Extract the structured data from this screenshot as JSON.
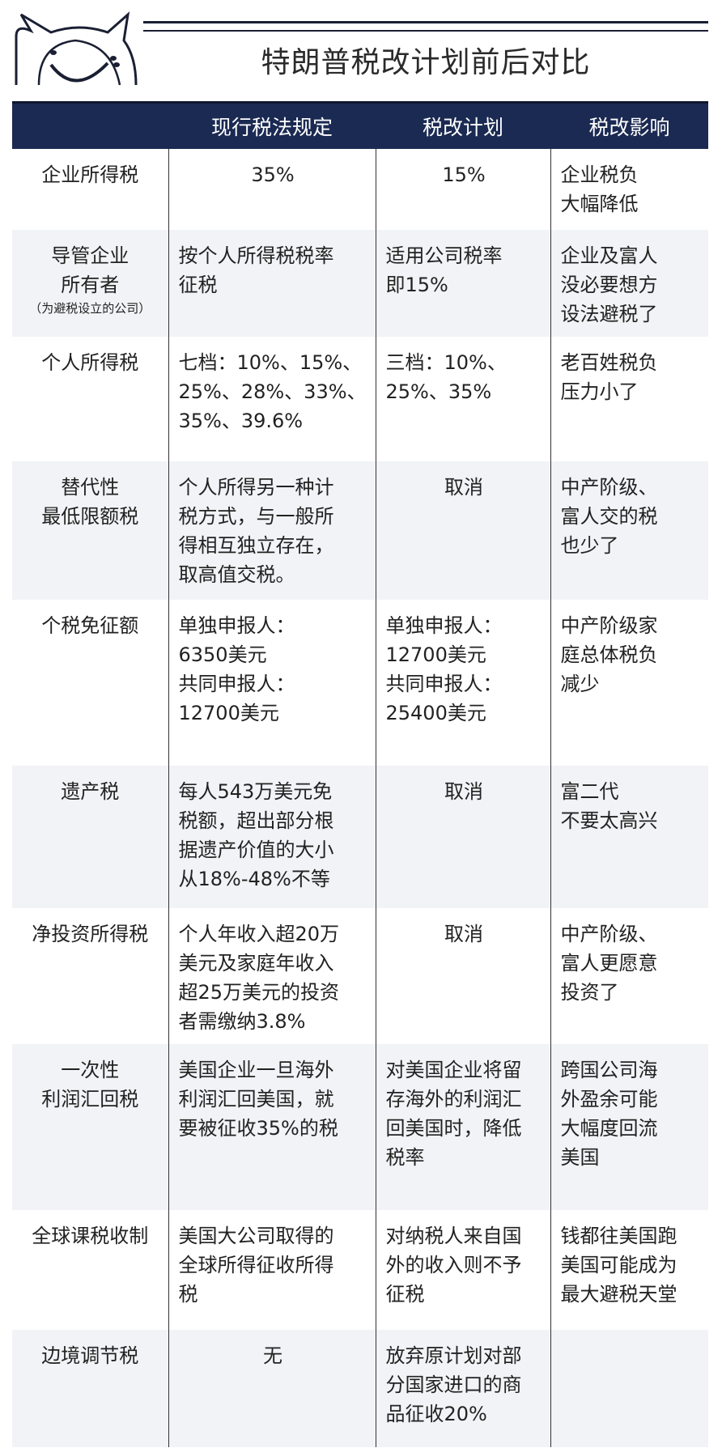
{
  "title": "特朗普税改计划前后对比",
  "headers": [
    "",
    "现行税法规定",
    "税改计划",
    "税改影响"
  ],
  "rows": [
    {
      "item": "企业所得税",
      "note": "",
      "current": "35%",
      "plan": "15%",
      "impact": "企业税负\n大幅降低"
    },
    {
      "item": "导管企业\n所有者",
      "note": "（为避税设立的公司）",
      "current": "按个人所得税税率\n征税",
      "plan": "适用公司税率\n即15%",
      "impact": "企业及富人\n没必要想方\n设法避税了"
    },
    {
      "item": "个人所得税",
      "note": "",
      "current": "七档：10%、15%、\n25%、28%、33%、\n35%、39.6%",
      "plan": "三档：10%、\n25%、35%",
      "impact": "老百姓税负\n压力小了"
    },
    {
      "item": "替代性\n最低限额税",
      "note": "",
      "current": "个人所得另一种计\n税方式，与一般所\n得相互独立存在，\n取高值交税。",
      "plan": "取消",
      "impact": "中产阶级、\n富人交的税\n也少了"
    },
    {
      "item": "个税免征额",
      "note": "",
      "current": "单独申报人：\n6350美元\n共同申报人：\n12700美元",
      "plan": "单独申报人：\n12700美元\n共同申报人：\n25400美元",
      "impact": "中产阶级家\n庭总体税负\n减少"
    },
    {
      "item": "遗产税",
      "note": "",
      "current": "每人543万美元免\n税额，超出部分根\n据遗产价值的大小\n从18%-48%不等",
      "plan": "取消",
      "impact": "富二代\n不要太高兴"
    },
    {
      "item": "净投资所得税",
      "note": "",
      "current": "个人年收入超20万\n美元及家庭年收入\n超25万美元的投资\n者需缴纳3.8%",
      "plan": "取消",
      "impact": "中产阶级、\n富人更愿意\n投资了"
    },
    {
      "item": "一次性\n利润汇回税",
      "note": "",
      "current": "美国企业一旦海外\n利润汇回美国，就\n要被征收35%的税",
      "plan": "对美国企业将留\n存海外的利润汇\n回美国时，降低\n税率",
      "impact": "跨国公司海\n外盈余可能\n大幅度回流\n美国"
    },
    {
      "item": "全球课税收制",
      "note": "",
      "current": "美国大公司取得的\n全球所得征收所得\n税",
      "plan": "对纳税人来自国\n外的收入则不予\n征税",
      "impact": "钱都往美国跑\n美国可能成为\n最大避税天堂"
    },
    {
      "item": "边境调节税",
      "note": "",
      "current": "无",
      "plan": "放弃原计划对部\n分国家进口的商\n品征收20%",
      "impact": ""
    }
  ],
  "colors": {
    "header_bg": "#1b2a52",
    "stripe": "#f2f3f6"
  },
  "logo_icon": "cat-face-icon"
}
